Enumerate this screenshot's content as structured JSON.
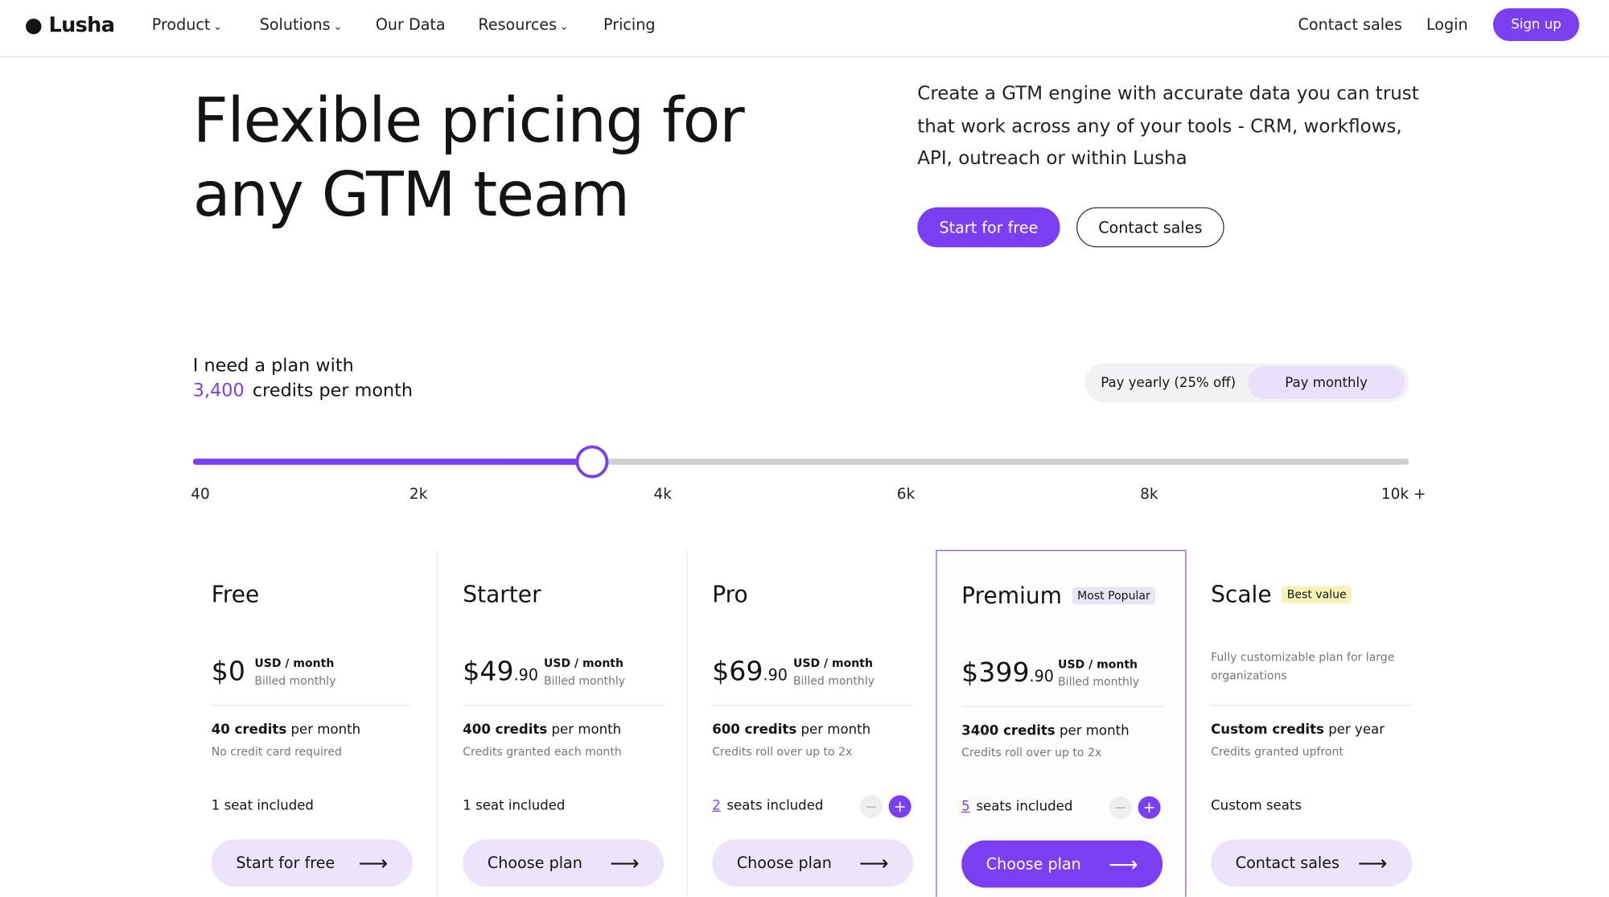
{
  "nav": {
    "logo": "Lusha",
    "items": [
      "Product",
      "Solutions",
      "Our Data",
      "Resources",
      "Pricing"
    ],
    "contact": "Contact sales",
    "login": "Login",
    "signup": "Sign up"
  },
  "hero": {
    "title_lines": [
      "Flexible pricing for",
      "any GTM team"
    ],
    "description": "Create a GTM engine with accurate data you can trust that work across any of your tools - CRM, workflows, API, outreach or within Lusha",
    "primary_button": "Start for free",
    "secondary_button": "Contact sales"
  },
  "planner": {
    "prefix": "I need a plan with",
    "credits": "3,400",
    "suffix": "credits per month",
    "toggle": [
      "Pay yearly (25% off)",
      "Pay monthly"
    ],
    "slider_ticks": [
      "40",
      "2k",
      "4k",
      "6k",
      "8k",
      "10k +"
    ]
  },
  "plans": [
    {
      "name": "Free",
      "price": "$0",
      "unit": "USD / month",
      "billing": "Billed monthly",
      "credits": "40 credits",
      "credits_suffix": "per month",
      "note": "No credit card required",
      "seats": "1 seat included",
      "button": "Start for free"
    },
    {
      "name": "Starter",
      "price": "$49",
      "cents": ".90",
      "unit": "USD / month",
      "billing": "Billed monthly",
      "credits": "400 credits",
      "credits_suffix": "per month",
      "note": "Credits granted each month",
      "seats": "1 seat included",
      "button": "Choose plan"
    },
    {
      "name": "Pro",
      "price": "$69",
      "cents": ".90",
      "unit": "USD / month",
      "billing": "Billed monthly",
      "credits": "600 credits",
      "credits_suffix": "per month",
      "note": "Credits roll over up to 2x",
      "seat_count": "2",
      "seats": "seats included",
      "button": "Choose plan"
    },
    {
      "name": "Premium",
      "badge": "Most Popular",
      "price": "$399",
      "cents": ".90",
      "unit": "USD / month",
      "billing": "Billed monthly",
      "credits": "3400 credits",
      "credits_suffix": "per month",
      "note": "Credits roll over up to 2x",
      "seat_count": "5",
      "seats": "seats included",
      "button": "Choose plan"
    },
    {
      "name": "Scale",
      "badge": "Best value",
      "description": "Fully customizable plan for large organizations",
      "credits": "Custom credits",
      "credits_suffix": "per year",
      "note": "Credits granted upfront",
      "seats": "Custom seats",
      "button": "Contact sales"
    }
  ]
}
